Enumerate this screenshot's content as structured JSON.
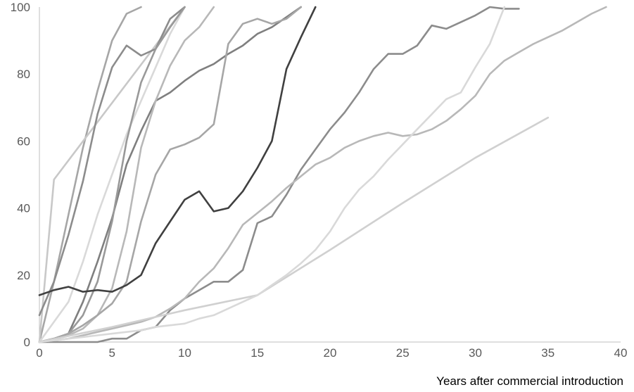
{
  "chart_data": {
    "type": "line",
    "title": "",
    "xlabel": "Years after commercial introduction",
    "ylabel": "",
    "xlim": [
      0,
      40
    ],
    "ylim": [
      0,
      100
    ],
    "xticks": [
      0,
      5,
      10,
      15,
      20,
      25,
      30,
      35,
      40
    ],
    "yticks": [
      0,
      20,
      40,
      60,
      80,
      100
    ],
    "grid": false,
    "legend": "none",
    "series": [
      {
        "color": "#a6a6a6",
        "x": [
          0,
          1,
          2,
          3,
          4,
          5,
          6,
          7
        ],
        "y": [
          0,
          18,
          38,
          58,
          75,
          90,
          98,
          100
        ]
      },
      {
        "color": "#c8c8c8",
        "x": [
          0,
          1,
          10
        ],
        "y": [
          0,
          48.5,
          100
        ]
      },
      {
        "color": "#8c8c8c",
        "x": [
          0,
          1,
          2,
          3,
          4,
          5,
          6,
          7,
          8,
          9,
          10
        ],
        "y": [
          8,
          18,
          32,
          48,
          68,
          82,
          88.5,
          85.5,
          87.5,
          96.5,
          100
        ]
      },
      {
        "color": "#d9d9d9",
        "x": [
          0,
          1,
          2,
          3,
          4,
          5,
          6,
          7,
          8,
          9,
          10
        ],
        "y": [
          0,
          6,
          12,
          24,
          38,
          50,
          62,
          72,
          82,
          92,
          100
        ]
      },
      {
        "color": "#7f7f7f",
        "x": [
          0,
          1,
          2,
          3,
          4,
          5,
          6,
          7,
          8,
          9,
          10,
          11,
          12,
          13,
          14,
          15,
          16,
          17,
          18
        ],
        "y": [
          0,
          1,
          2.5,
          12,
          24,
          37,
          53,
          63,
          72,
          74.5,
          78,
          81,
          83,
          86,
          88.5,
          92,
          94,
          97,
          100
        ]
      },
      {
        "color": "#999999",
        "x": [
          0,
          1,
          2,
          3,
          4,
          5,
          6,
          7,
          8,
          9,
          10
        ],
        "y": [
          0,
          1,
          2.5,
          8,
          18,
          36,
          60,
          77.5,
          87.5,
          94,
          100
        ]
      },
      {
        "color": "#b8b8b8",
        "x": [
          0,
          1,
          2,
          3,
          4,
          5,
          6,
          7,
          8,
          9,
          10,
          11,
          12
        ],
        "y": [
          0,
          1,
          2,
          4,
          8,
          16,
          33,
          58,
          72,
          82.5,
          90,
          94,
          100
        ]
      },
      {
        "color": "#a6a6a6",
        "x": [
          0,
          1,
          2,
          3,
          4,
          5,
          6,
          7,
          8,
          9,
          10,
          11,
          12,
          13,
          14,
          15,
          16,
          17,
          18
        ],
        "y": [
          0,
          1,
          2.5,
          5,
          8,
          11.5,
          18,
          36,
          50,
          57.5,
          59,
          61,
          65,
          89,
          95,
          96.5,
          95,
          96.5,
          100
        ]
      },
      {
        "color": "#404040",
        "x": [
          0,
          1,
          2,
          3,
          4,
          5,
          6,
          7,
          8,
          9,
          10,
          11,
          12,
          13,
          14,
          15,
          16,
          17,
          18,
          19
        ],
        "y": [
          14,
          15.5,
          16.5,
          15,
          15.5,
          15,
          17,
          20,
          29.5,
          36,
          42.5,
          45,
          39,
          40,
          45,
          52,
          60,
          81.5,
          91,
          100
        ]
      },
      {
        "color": "#8c8c8c",
        "x": [
          0,
          1,
          2,
          3,
          4,
          5,
          6,
          7,
          8,
          9,
          10,
          11,
          12,
          13,
          14,
          15,
          16,
          17,
          18,
          19,
          20,
          21,
          22,
          23,
          24,
          25,
          26,
          27,
          28,
          29,
          30,
          31,
          32,
          33
        ],
        "y": [
          0,
          0,
          0,
          0,
          0,
          1,
          1,
          3.5,
          4.5,
          9.5,
          13,
          15.5,
          18,
          18,
          21.5,
          35.5,
          37.5,
          44,
          51.5,
          57.5,
          63.5,
          68.5,
          74.5,
          81.5,
          86,
          86,
          88.5,
          94.5,
          93.5,
          95.5,
          97.5,
          100,
          99.5,
          99.5
        ]
      },
      {
        "color": "#b8b8b8",
        "x": [
          0,
          1,
          2,
          3,
          4,
          5,
          6,
          7,
          8,
          9,
          10,
          11,
          12,
          13,
          14,
          15,
          16,
          17,
          18,
          19,
          20,
          21,
          22,
          23,
          24,
          25,
          26,
          27,
          28,
          29,
          30,
          31,
          32,
          33,
          34,
          35,
          36,
          37,
          38,
          39
        ],
        "y": [
          0,
          0.5,
          1,
          2,
          3,
          4,
          5,
          6,
          7.5,
          10,
          13,
          18,
          22,
          28,
          35,
          38.5,
          42,
          46,
          49.5,
          53,
          55,
          58,
          60,
          61.5,
          62.5,
          61.5,
          62,
          63.5,
          66,
          69.5,
          73.5,
          80,
          84,
          86.5,
          89,
          91,
          93,
          95.5,
          98,
          100
        ]
      },
      {
        "color": "#d0d0d0",
        "x": [
          0,
          5,
          10,
          15,
          20,
          25,
          30,
          35
        ],
        "y": [
          0,
          4.5,
          9.5,
          14,
          27.5,
          41.5,
          55,
          67
        ]
      },
      {
        "color": "#d9d9d9",
        "x": [
          0,
          1,
          2,
          3,
          4,
          5,
          6,
          7,
          8,
          9,
          10,
          11,
          12,
          13,
          14,
          15,
          16,
          17,
          18,
          19,
          20,
          21,
          22,
          23,
          24,
          25,
          26,
          27,
          28,
          29,
          30,
          31,
          32
        ],
        "y": [
          0,
          0.5,
          1,
          1.5,
          2,
          2.5,
          3,
          3.5,
          4.5,
          5,
          5.5,
          7,
          8,
          10,
          12,
          14,
          17,
          20,
          23.5,
          27.5,
          33,
          40,
          45.5,
          49.5,
          54.5,
          59,
          63.5,
          68,
          72.5,
          74.5,
          82,
          89,
          100
        ]
      }
    ]
  }
}
